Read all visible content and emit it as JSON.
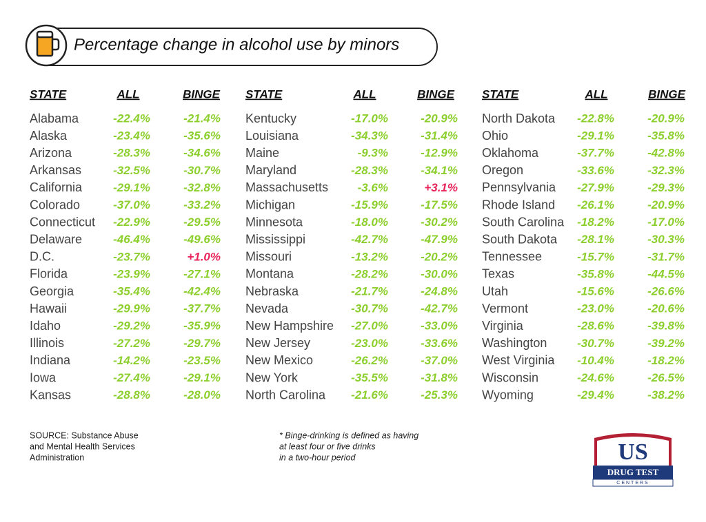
{
  "header": {
    "title": "Percentage change in alcohol use by minors"
  },
  "tables": [
    {
      "columns": [
        "STATE",
        "ALL",
        "BINGE"
      ],
      "rows": [
        [
          "Alabama",
          "-22.4%",
          "-21.4%"
        ],
        [
          "Alaska",
          "-23.4%",
          "-35.6%"
        ],
        [
          "Arizona",
          "-28.3%",
          "-34.6%"
        ],
        [
          "Arkansas",
          "-32.5%",
          "-30.7%"
        ],
        [
          "California",
          "-29.1%",
          "-32.8%"
        ],
        [
          "Colorado",
          "-37.0%",
          "-33.2%"
        ],
        [
          "Connecticut",
          "-22.9%",
          "-29.5%"
        ],
        [
          "Delaware",
          "-46.4%",
          "-49.6%"
        ],
        [
          "D.C.",
          "-23.7%",
          "+1.0%"
        ],
        [
          "Florida",
          "-23.9%",
          "-27.1%"
        ],
        [
          "Georgia",
          "-35.4%",
          "-42.4%"
        ],
        [
          "Hawaii",
          "-29.9%",
          "-37.7%"
        ],
        [
          "Idaho",
          "-29.2%",
          "-35.9%"
        ],
        [
          "Illinois",
          "-27.2%",
          "-29.7%"
        ],
        [
          "Indiana",
          "-14.2%",
          "-23.5%"
        ],
        [
          "Iowa",
          "-27.4%",
          "-29.1%"
        ],
        [
          "Kansas",
          "-28.8%",
          "-28.0%"
        ]
      ]
    },
    {
      "columns": [
        "STATE",
        "ALL",
        "BINGE"
      ],
      "rows": [
        [
          "Kentucky",
          "-17.0%",
          "-20.9%"
        ],
        [
          "Louisiana",
          "-34.3%",
          "-31.4%"
        ],
        [
          "Maine",
          "-9.3%",
          "-12.9%"
        ],
        [
          "Maryland",
          "-28.3%",
          "-34.1%"
        ],
        [
          "Massachusetts",
          "-3.6%",
          "+3.1%"
        ],
        [
          "Michigan",
          "-15.9%",
          "-17.5%"
        ],
        [
          "Minnesota",
          "-18.0%",
          "-30.2%"
        ],
        [
          "Mississippi",
          "-42.7%",
          "-47.9%"
        ],
        [
          "Missouri",
          "-13.2%",
          "-20.2%"
        ],
        [
          "Montana",
          "-28.2%",
          "-30.0%"
        ],
        [
          "Nebraska",
          "-21.7%",
          "-24.8%"
        ],
        [
          "Nevada",
          "-30.7%",
          "-42.7%"
        ],
        [
          "New Hampshire",
          "-27.0%",
          "-33.0%"
        ],
        [
          "New Jersey",
          "-23.0%",
          "-33.6%"
        ],
        [
          "New Mexico",
          "-26.2%",
          "-37.0%"
        ],
        [
          "New York",
          "-35.5%",
          "-31.8%"
        ],
        [
          "North Carolina",
          "-21.6%",
          "-25.3%"
        ]
      ]
    },
    {
      "columns": [
        "STATE",
        "ALL",
        "BINGE"
      ],
      "rows": [
        [
          "North Dakota",
          "-22.8%",
          "-20.9%"
        ],
        [
          "Ohio",
          "-29.1%",
          "-35.8%"
        ],
        [
          "Oklahoma",
          "-37.7%",
          "-42.8%"
        ],
        [
          "Oregon",
          "-33.6%",
          "-32.3%"
        ],
        [
          "Pennsylvania",
          "-27.9%",
          "-29.3%"
        ],
        [
          "Rhode Island",
          "-26.1%",
          "-20.9%"
        ],
        [
          "South Carolina",
          "-18.2%",
          "-17.0%"
        ],
        [
          "South Dakota",
          "-28.1%",
          "-30.3%"
        ],
        [
          "Tennessee",
          "-15.7%",
          "-31.7%"
        ],
        [
          "Texas",
          "-35.8%",
          "-44.5%"
        ],
        [
          "Utah",
          "-15.6%",
          "-26.6%"
        ],
        [
          "Vermont",
          "-23.0%",
          "-20.6%"
        ],
        [
          "Virginia",
          "-28.6%",
          "-39.8%"
        ],
        [
          "Washington",
          "-30.7%",
          "-39.2%"
        ],
        [
          "West Virginia",
          "-10.4%",
          "-18.2%"
        ],
        [
          "Wisconsin",
          "-24.6%",
          "-26.5%"
        ],
        [
          "Wyoming",
          "-29.4%",
          "-38.2%"
        ]
      ]
    }
  ],
  "footer": {
    "source": [
      "SOURCE: Substance Abuse",
      "and Mental Health Services",
      "Administration"
    ],
    "note": [
      "* Binge-drinking is defined as having",
      "at least four or five drinks",
      "in a two-hour period"
    ]
  },
  "logo": {
    "main": "US",
    "sub": "DRUG TEST",
    "tag": "CENTERS"
  }
}
